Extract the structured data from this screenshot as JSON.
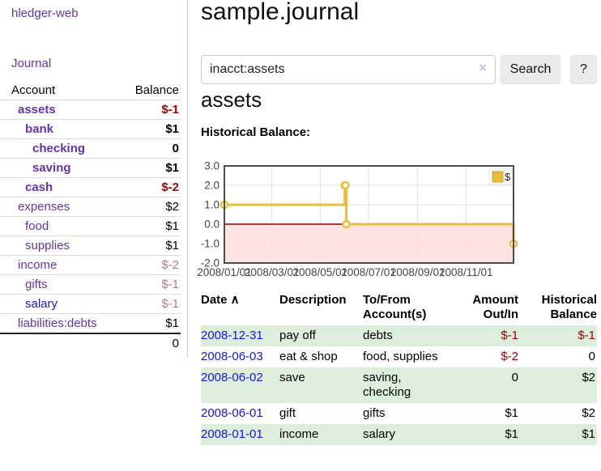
{
  "app": {
    "brand": "hledger-web",
    "nav_journal": "Journal"
  },
  "colors": {
    "link_purple": "#6633aa",
    "link_blue": "#1515dd",
    "negative_strong": "#a40000",
    "negative_weak": "#b97c7c",
    "row_stripe_green": "#ddeedd",
    "chart_line_gold": "#e9bd3e",
    "chart_negative_fill_pink": "#ffd9d9",
    "chart_zero_line": "#8b0000"
  },
  "sidebar_accounts": {
    "col_account": "Account",
    "col_balance": "Balance",
    "rows": [
      {
        "name": "assets",
        "balance": "$-1",
        "level": 1,
        "bold": true,
        "neg": "strong"
      },
      {
        "name": "bank",
        "balance": "$1",
        "level": 2,
        "bold": true,
        "neg": "none"
      },
      {
        "name": "checking",
        "balance": "0",
        "level": 3,
        "bold": true,
        "neg": "none"
      },
      {
        "name": "saving",
        "balance": "$1",
        "level": 3,
        "bold": true,
        "neg": "none"
      },
      {
        "name": "cash",
        "balance": "$-2",
        "level": 2,
        "bold": true,
        "neg": "strong"
      },
      {
        "name": "expenses",
        "balance": "$2",
        "level": 1,
        "bold": false,
        "neg": "none"
      },
      {
        "name": "food",
        "balance": "$1",
        "level": 2,
        "bold": false,
        "neg": "none"
      },
      {
        "name": "supplies",
        "balance": "$1",
        "level": 2,
        "bold": false,
        "neg": "none"
      },
      {
        "name": "income",
        "balance": "$-2",
        "level": 1,
        "bold": false,
        "neg": "weak"
      },
      {
        "name": "gifts",
        "balance": "$-1",
        "level": 2,
        "bold": false,
        "neg": "weak"
      },
      {
        "name": "salary",
        "balance": "$-1",
        "level": 2,
        "bold": false,
        "neg": "weak",
        "blue": true
      },
      {
        "name": "liabilities:debts",
        "balance": "$1",
        "level": 1,
        "bold": false,
        "neg": "none"
      }
    ],
    "total": "0"
  },
  "header": {
    "title": "sample.journal"
  },
  "search": {
    "value": "inacct:assets",
    "clear_icon": "×",
    "search_button": "Search",
    "help_button": "?"
  },
  "account_page": {
    "heading": "assets"
  },
  "chart_data": {
    "type": "line",
    "step": true,
    "title": "Historical Balance:",
    "legend": "$",
    "legend_position": "top-right",
    "series": [
      {
        "name": "$",
        "points": [
          [
            "2008-01-01",
            1
          ],
          [
            "2008-06-01",
            2
          ],
          [
            "2008-06-02",
            2
          ],
          [
            "2008-06-03",
            0
          ],
          [
            "2008-12-31",
            -1
          ]
        ]
      }
    ],
    "x_range": [
      "2008-01-01",
      "2008-12-31"
    ],
    "ylim": [
      -2,
      3
    ],
    "y_ticks": [
      "3.0",
      "2.0",
      "1.0",
      "0.0",
      "-1.0",
      "-2.0"
    ],
    "x_ticks": [
      "2008/01/01",
      "2008/03/01",
      "2008/05/01",
      "2008/07/01",
      "2008/09/01",
      "2008/11/01"
    ],
    "grid": true,
    "negative_region_shaded": true
  },
  "register": {
    "sort_icon": "∧",
    "headers": [
      {
        "lines": [
          "Date"
        ],
        "align": "left",
        "sortable": true
      },
      {
        "lines": [
          "Description"
        ],
        "align": "left"
      },
      {
        "lines": [
          "To/From",
          "Account(s)"
        ],
        "align": "left"
      },
      {
        "lines": [
          "Amount",
          "Out/In"
        ],
        "align": "right"
      },
      {
        "lines": [
          "Historical",
          "Balance"
        ],
        "align": "right"
      }
    ],
    "rows": [
      {
        "date": "2008-12-31",
        "description": "pay off",
        "accounts": "debts",
        "amount": "$-1",
        "amount_neg": true,
        "balance": "$-1",
        "balance_neg": true
      },
      {
        "date": "2008-06-03",
        "description": "eat & shop",
        "accounts": "food, supplies",
        "amount": "$-2",
        "amount_neg": true,
        "balance": "0",
        "balance_neg": false
      },
      {
        "date": "2008-06-02",
        "description": "save",
        "accounts": "saving, checking",
        "amount": "0",
        "amount_neg": false,
        "balance": "$2",
        "balance_neg": false
      },
      {
        "date": "2008-06-01",
        "description": "gift",
        "accounts": "gifts",
        "amount": "$1",
        "amount_neg": false,
        "balance": "$2",
        "balance_neg": false
      },
      {
        "date": "2008-01-01",
        "description": "income",
        "accounts": "salary",
        "amount": "$1",
        "amount_neg": false,
        "balance": "$1",
        "balance_neg": false
      }
    ]
  }
}
